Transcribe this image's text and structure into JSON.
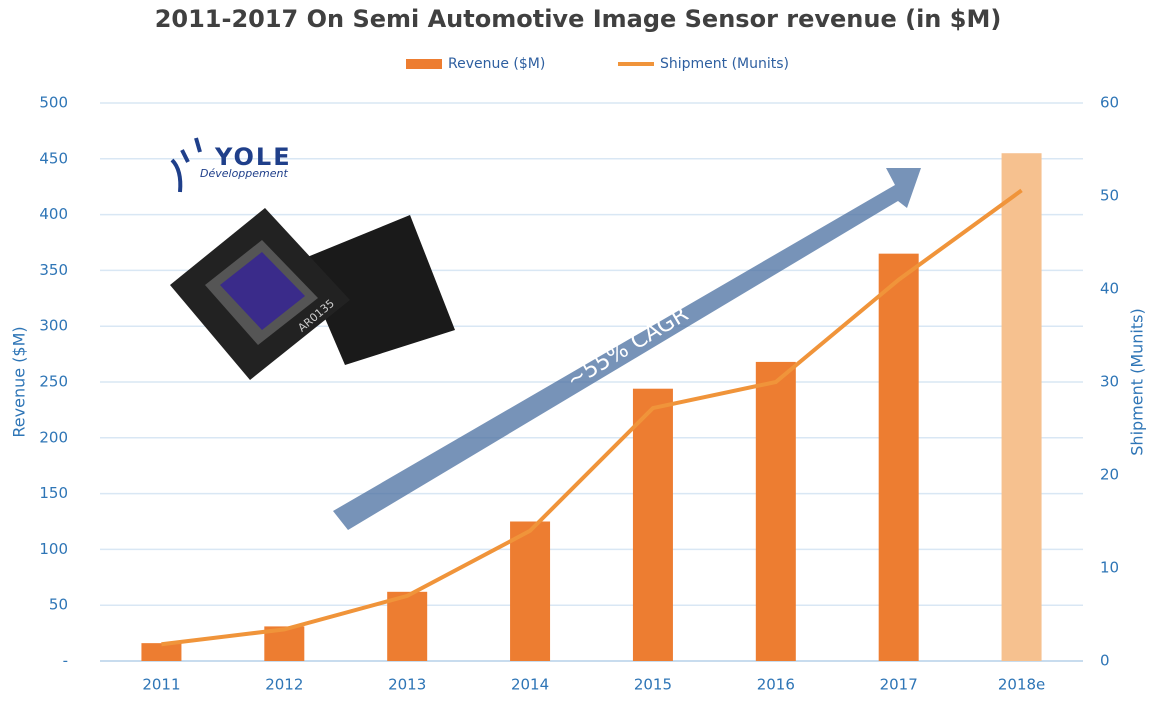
{
  "chart_data": {
    "type": "bar-line",
    "title": "2011-2017 On Semi  Automotive Image Sensor revenue (in $M)",
    "categories": [
      "2011",
      "2012",
      "2013",
      "2014",
      "2015",
      "2016",
      "2017",
      "2018e"
    ],
    "series": [
      {
        "name": "Revenue ($M)",
        "type": "bar",
        "color": "#ed7d31",
        "colors": [
          "#ed7d31",
          "#ed7d31",
          "#ed7d31",
          "#ed7d31",
          "#ed7d31",
          "#ed7d31",
          "#ed7d31",
          "#f6c18f"
        ],
        "values": [
          16,
          31,
          62,
          125,
          244,
          268,
          365,
          455
        ]
      },
      {
        "name": "Shipment (Munits)",
        "type": "line",
        "axis": "y2",
        "color": "#f0943a",
        "values": [
          1.8,
          3.4,
          7,
          14,
          27.2,
          30,
          41,
          50.6
        ]
      }
    ],
    "ylabel": "Revenue ($M)",
    "y2label": "Shipment (Munits)",
    "ylim": [
      0,
      500
    ],
    "yticks": [
      {
        "value": 0,
        "label": "-"
      },
      50,
      100,
      150,
      200,
      250,
      300,
      350,
      400,
      450,
      500
    ],
    "y2lim": [
      0,
      60
    ],
    "y2ticks": [
      0,
      10,
      20,
      30,
      40,
      50,
      60
    ],
    "grid": true,
    "legend": "top",
    "annotation": "~55% CAGR"
  },
  "logo": {
    "name": "YOLE",
    "subtitle": "Développement"
  },
  "chip_label": "AR0135"
}
